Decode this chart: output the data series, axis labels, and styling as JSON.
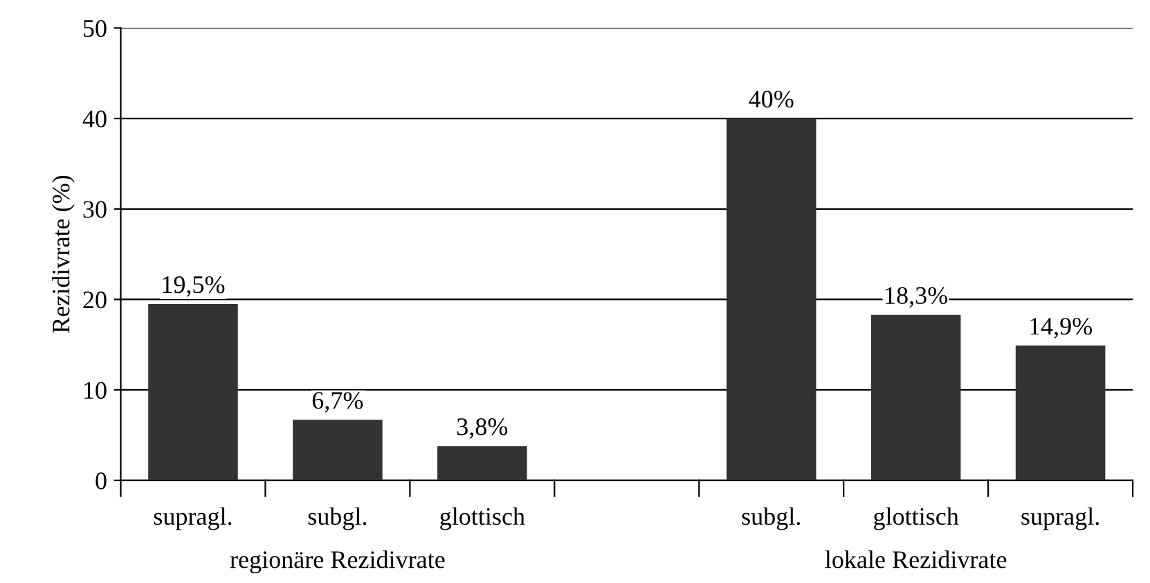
{
  "chart_data": {
    "type": "bar",
    "ylabel": "Rezidivrate (%)",
    "categories": [
      "supragl.",
      "subgl.",
      "glottisch",
      null,
      "subgl.",
      "glottisch",
      "supragl."
    ],
    "values": [
      19.5,
      6.7,
      3.8,
      null,
      40,
      18.3,
      14.9
    ],
    "value_labels": [
      "19,5%",
      "6,7%",
      "3,8%",
      null,
      "40%",
      "18,3%",
      "14,9%"
    ],
    "color": "#333333",
    "ylim": [
      0,
      50
    ],
    "yticks": [
      0,
      10,
      20,
      30,
      40,
      50
    ],
    "grid": "y",
    "legend": false,
    "annotations": [
      "regionäre Rezidivrate",
      "lokale Rezidivrate"
    ]
  }
}
